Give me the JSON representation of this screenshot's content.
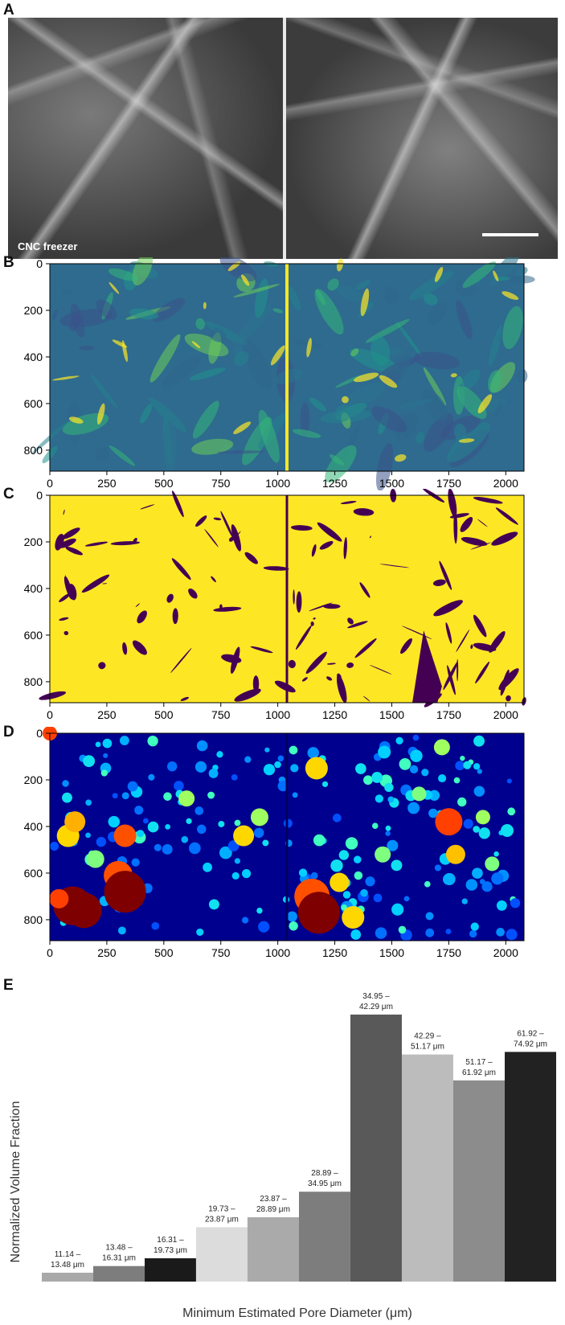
{
  "panels": {
    "a": {
      "label": "A",
      "caption": "CNC freezer"
    },
    "b": {
      "label": "B"
    },
    "c": {
      "label": "C"
    },
    "d": {
      "label": "D"
    },
    "e": {
      "label": "E"
    }
  },
  "image_axes": {
    "y_ticks": [
      "0",
      "200",
      "400",
      "600",
      "800"
    ],
    "x_ticks": [
      "0",
      "250",
      "500",
      "750",
      "1000",
      "1250",
      "1500",
      "1750",
      "2000"
    ]
  },
  "colors": {
    "viridis_dark": "#440154",
    "viridis_blue": "#31688e",
    "viridis_teal": "#35b779",
    "viridis_yellow": "#fde725",
    "jet_dark_blue": "#00008f",
    "jet_red": "#7f0000"
  },
  "chart_data": {
    "type": "bar",
    "ylabel": "Normalized Volume Fraction",
    "xlabel": "Minimum Estimated Pore Diameter (μm)",
    "categories": [
      "11.14 – 13.48 μm",
      "13.48 – 16.31 μm",
      "16.31 – 19.73 μm",
      "19.73 – 23.87 μm",
      "23.87 – 28.89 μm",
      "28.89 – 34.95 μm",
      "34.95 – 42.29 μm",
      "42.29 – 51.17 μm",
      "51.17 – 61.92 μm",
      "61.92 – 74.92 μm"
    ],
    "label_lines": [
      [
        "11.14 –",
        "13.48 μm"
      ],
      [
        "13.48 –",
        "16.31 μm"
      ],
      [
        "16.31 –",
        "19.73 μm"
      ],
      [
        "19.73 –",
        "23.87 μm"
      ],
      [
        "23.87 –",
        "28.89 μm"
      ],
      [
        "28.89 –",
        "34.95 μm"
      ],
      [
        "34.95 –",
        "42.29 μm"
      ],
      [
        "42.29 –",
        "51.17 μm"
      ],
      [
        "51.17 –",
        "61.92 μm"
      ],
      [
        "61.92 –",
        "74.92 μm"
      ]
    ],
    "bin_edges": [
      11.14,
      13.48,
      16.31,
      19.73,
      23.87,
      28.89,
      34.95,
      42.29,
      51.17,
      61.92,
      74.92
    ],
    "values": [
      0.024,
      0.042,
      0.063,
      0.147,
      0.174,
      0.243,
      0.722,
      0.614,
      0.544,
      0.621
    ],
    "bar_colors": [
      "#a9a9a9",
      "#7d7d7d",
      "#1a1a1a",
      "#dcdcdc",
      "#aaaaaa",
      "#7d7d7d",
      "#595959",
      "#bcbcbc",
      "#8c8c8c",
      "#222222"
    ],
    "ylim": [
      0,
      1
    ]
  }
}
